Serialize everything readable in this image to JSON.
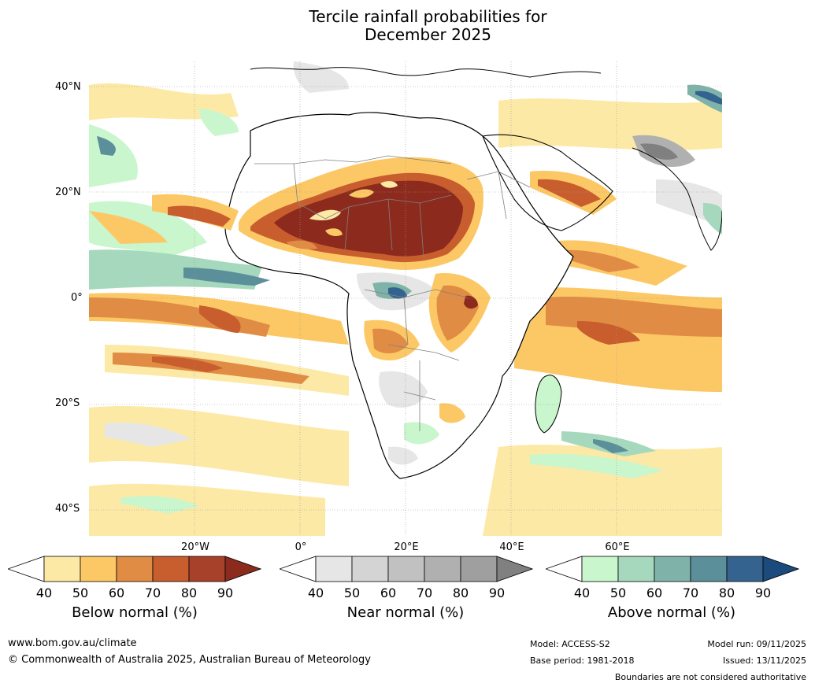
{
  "title_line1": "Tercile rainfall probabilities for",
  "title_line2": "December 2025",
  "map": {
    "region": "Africa and surrounding oceans",
    "lat_labels": [
      "40°N",
      "20°N",
      "0°",
      "20°S",
      "40°S"
    ],
    "lon_labels": [
      "20°W",
      "0°",
      "20°E",
      "40°E",
      "60°E"
    ]
  },
  "colorbars": [
    {
      "label": "Below normal (%)",
      "ticks": [
        "40",
        "50",
        "60",
        "70",
        "80",
        "90"
      ],
      "colors": [
        "#ffffff",
        "#fde9a6",
        "#fcc865",
        "#e08c44",
        "#c85e2e",
        "#a8412a",
        "#8c2b1d"
      ]
    },
    {
      "label": "Near normal (%)",
      "ticks": [
        "40",
        "50",
        "60",
        "70",
        "80",
        "90"
      ],
      "colors": [
        "#ffffff",
        "#e6e6e6",
        "#d4d4d4",
        "#c1c1c1",
        "#b0b0b0",
        "#9f9f9f",
        "#808080"
      ]
    },
    {
      "label": "Above normal (%)",
      "ticks": [
        "40",
        "50",
        "60",
        "70",
        "80",
        "90"
      ],
      "colors": [
        "#ffffff",
        "#c9f6cd",
        "#a5d8bc",
        "#7fb3aa",
        "#5b8f9a",
        "#35638f",
        "#1c4a7c"
      ]
    }
  ],
  "footer": {
    "website": "www.bom.gov.au/climate",
    "copyright": "© Commonwealth of Australia 2025, Australian Bureau of Meteorology",
    "model": "Model: ACCESS-S2",
    "base_period": "Base period: 1981-2018",
    "model_run": "Model run: 09/11/2025",
    "issued": "Issued: 13/11/2025",
    "disclaimer": "Boundaries are not considered authoritative"
  }
}
